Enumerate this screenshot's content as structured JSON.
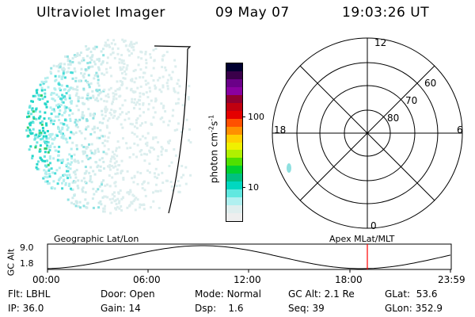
{
  "header": {
    "instrument": "Ultraviolet Imager",
    "date": "09 May 07",
    "time": "19:03:26 UT"
  },
  "colorbar": {
    "unit_text": "photon cm",
    "unit_exp1": "-2",
    "unit_s": "s",
    "unit_exp2": "-1",
    "tick_100": "100",
    "tick_10": "10",
    "colors": [
      "#000030",
      "#3a004a",
      "#6a0088",
      "#8a00a0",
      "#900030",
      "#c00010",
      "#e40000",
      "#ff5000",
      "#ff9000",
      "#ffd000",
      "#f0f000",
      "#b0f000",
      "#50e000",
      "#00d030",
      "#00c080",
      "#00d8c0",
      "#60e8e0",
      "#b0f0f0",
      "#dfeeee",
      "#eeeeee"
    ]
  },
  "polar": {
    "mlt_top": "12",
    "mlt_bottom": "0",
    "mlt_left": "18",
    "mlt_right": "6",
    "lat_60": "60",
    "lat_70": "70",
    "lat_80": "80"
  },
  "timeline": {
    "left_label": "Geographic Lat/Lon",
    "right_label": "Apex MLat/MLT",
    "yaxis_label": "GC Alt",
    "y_top": "9.0",
    "y_bottom": "1.8",
    "x_ticks": [
      "00:00",
      "06:00",
      "12:00",
      "18:00",
      "23:59"
    ],
    "current_time_marker_color": "#ff0000"
  },
  "meta": {
    "filter_label": "Flt:",
    "filter_value": "LBHL",
    "ip_label": "IP:",
    "ip_value": "36.0",
    "door_label": "Door:",
    "door_value": "Open",
    "gain_label": "Gain:",
    "gain_value": "14",
    "mode_label": "Mode:",
    "mode_value": "Normal",
    "dsp_label": "Dsp:",
    "dsp_value": "1.6",
    "gcalt_label": "GC Alt:",
    "gcalt_value": "2.1 Re",
    "seq_label": "Seq:",
    "seq_value": "39",
    "glat_label": "GLat:",
    "glat_value": "53.6",
    "glon_label": "GLon:",
    "glon_value": "352.9"
  }
}
